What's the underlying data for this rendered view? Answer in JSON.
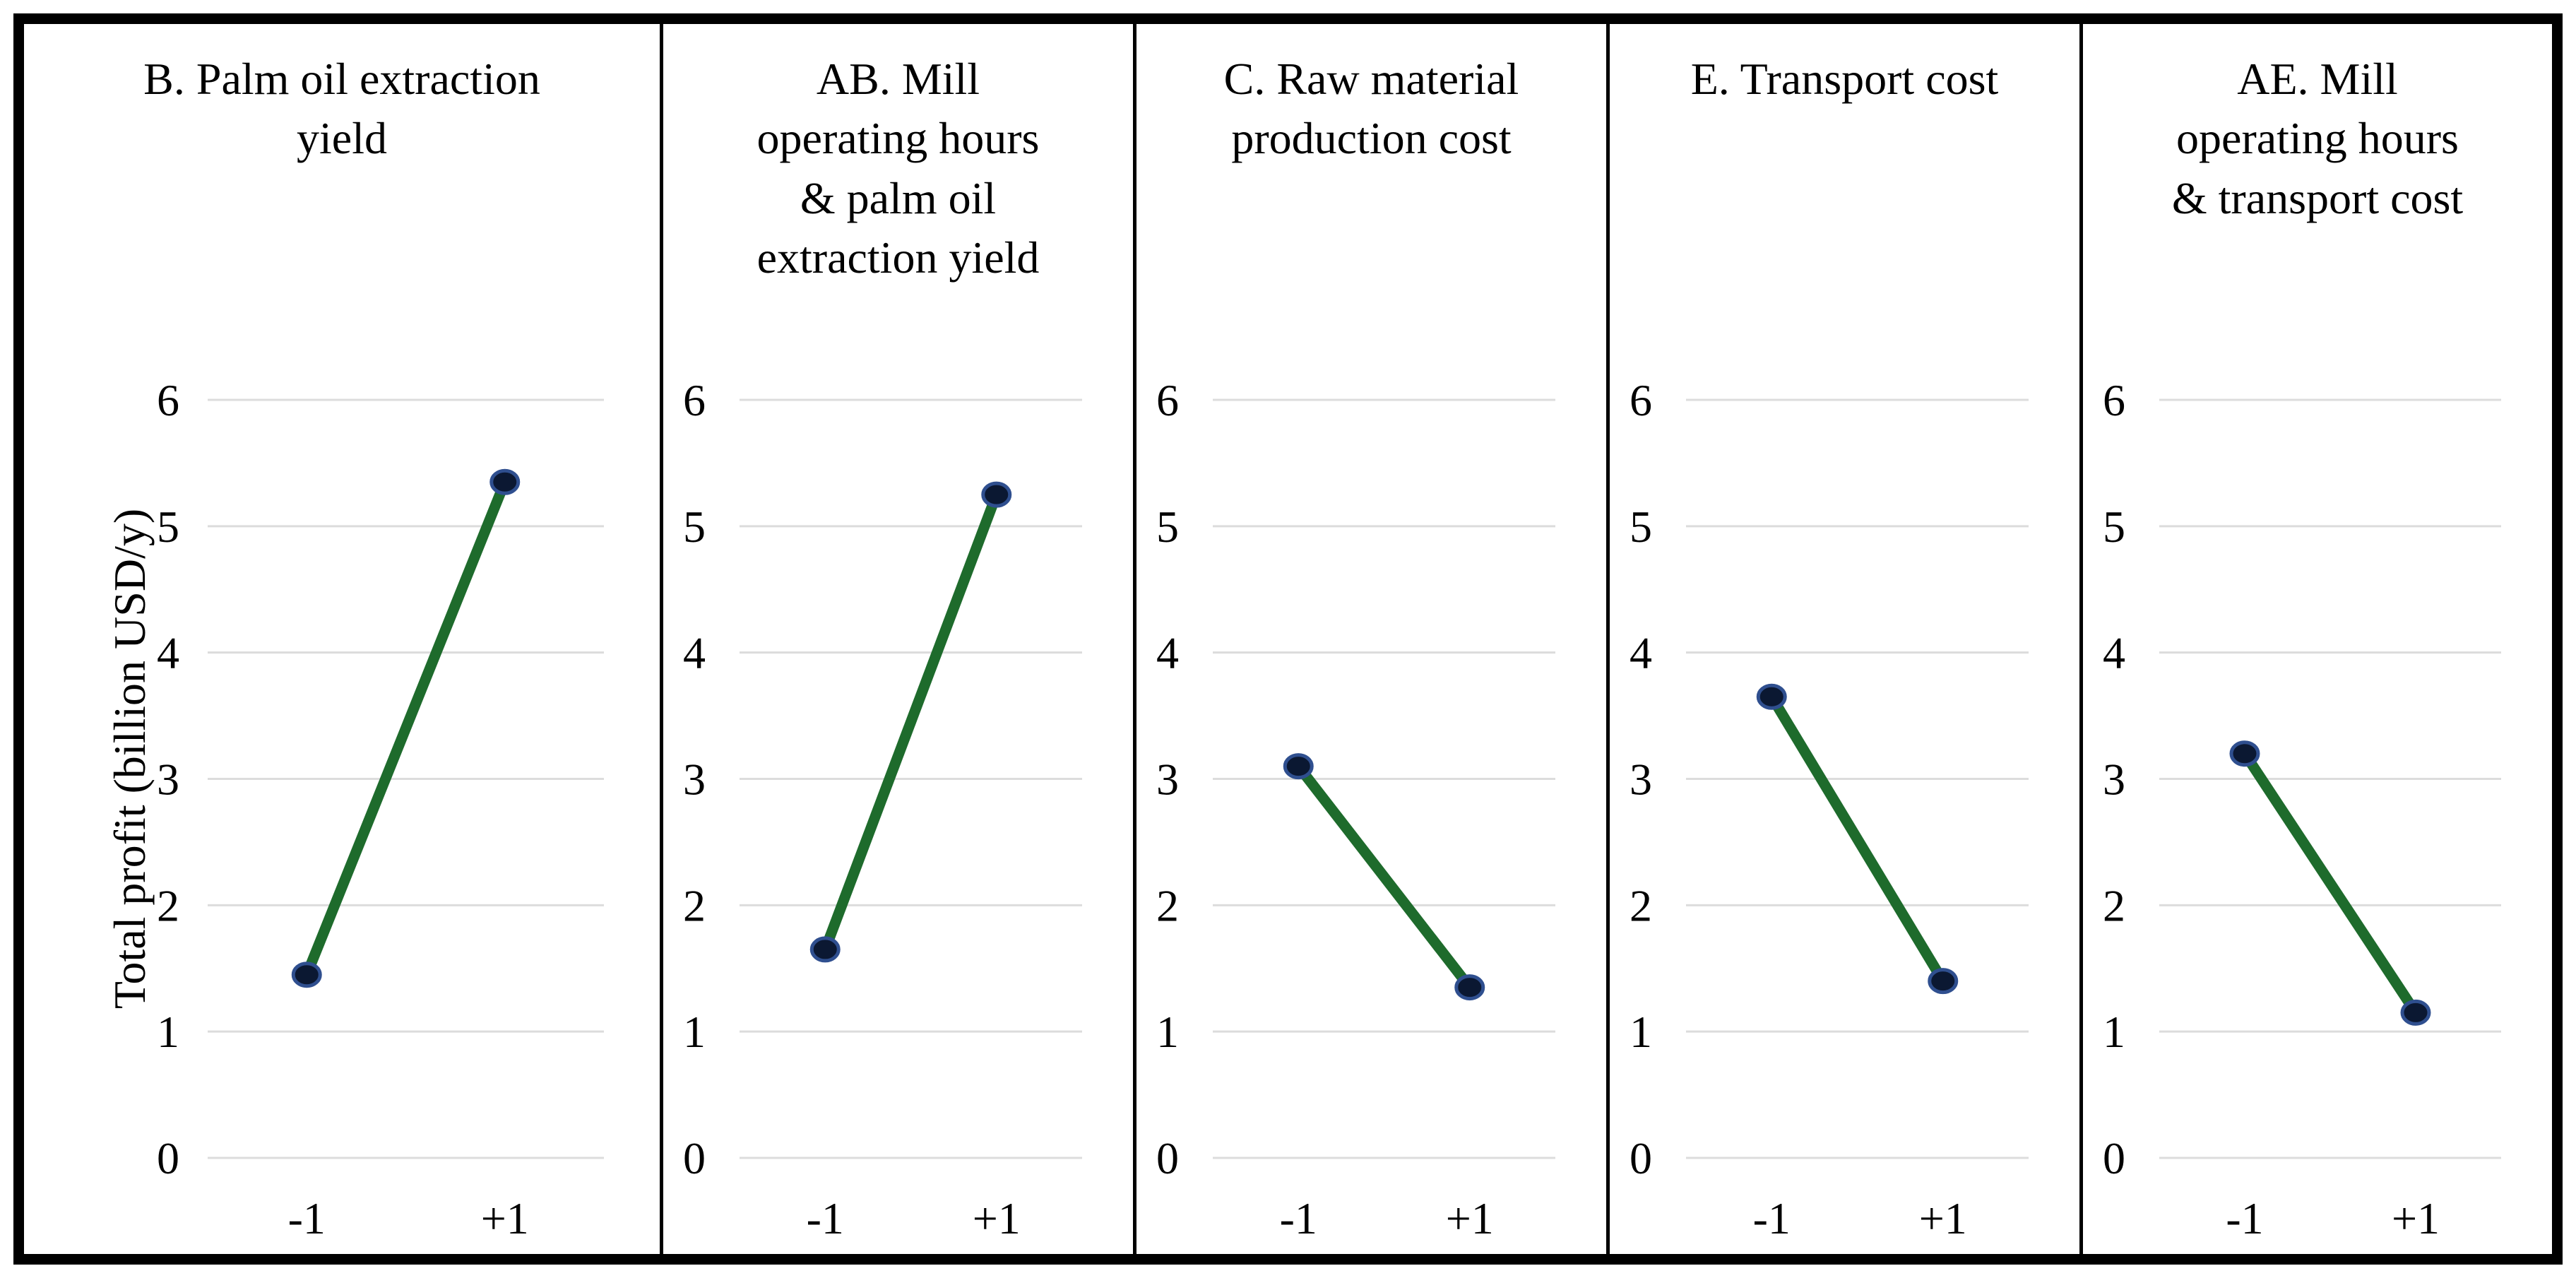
{
  "figure": {
    "background": "#ffffff",
    "border_color": "#000000"
  },
  "chart_data": {
    "type": "line",
    "ylabel": "Total profit (billion USD/y)",
    "ylim": [
      0,
      6
    ],
    "yticks": [
      0,
      1,
      2,
      3,
      4,
      5,
      6
    ],
    "x_categories": [
      "-1",
      "+1"
    ],
    "grid": "horizontal gridlines on",
    "legend": "none",
    "line_color": "#1e6b2c",
    "marker_fill": "#0b1832",
    "marker_edge": "#2f4f8f",
    "gridline_color": "#dcdcdc",
    "panels": [
      {
        "id": "B",
        "title": "B. Palm oil extraction\nyield",
        "x": [
          "-1",
          "+1"
        ],
        "values": [
          1.45,
          5.35
        ]
      },
      {
        "id": "AB",
        "title": "AB. Mill\noperating hours\n& palm oil\nextraction yield",
        "x": [
          "-1",
          "+1"
        ],
        "values": [
          1.65,
          5.25
        ]
      },
      {
        "id": "C",
        "title": "C. Raw material\nproduction cost",
        "x": [
          "-1",
          "+1"
        ],
        "values": [
          3.1,
          1.35
        ]
      },
      {
        "id": "E",
        "title": "E. Transport cost",
        "x": [
          "-1",
          "+1"
        ],
        "values": [
          3.65,
          1.4
        ]
      },
      {
        "id": "AE",
        "title": "AE. Mill\noperating hours\n& transport cost",
        "x": [
          "-1",
          "+1"
        ],
        "values": [
          3.2,
          1.15
        ]
      }
    ]
  }
}
